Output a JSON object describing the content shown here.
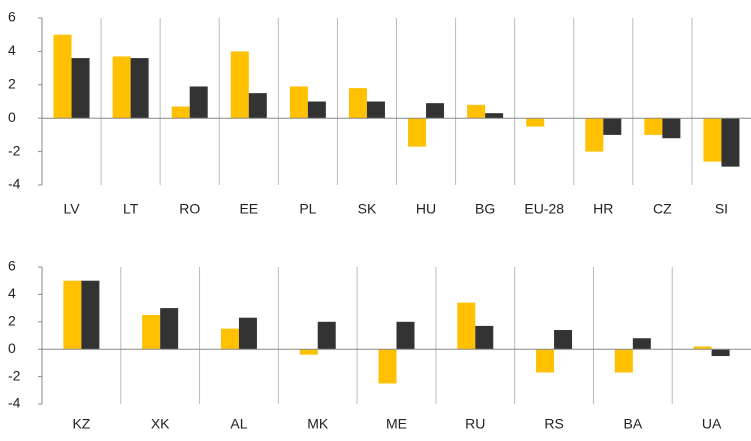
{
  "chart_data": [
    {
      "type": "bar",
      "categories": [
        "LV",
        "LT",
        "RO",
        "EE",
        "PL",
        "SK",
        "HU",
        "BG",
        "EU-28",
        "HR",
        "CZ",
        "SI"
      ],
      "series": [
        {
          "color": "#ffc000",
          "values": [
            5.0,
            3.7,
            0.7,
            4.0,
            1.9,
            1.8,
            -1.7,
            0.8,
            -0.5,
            -2.0,
            -1.0,
            -2.6
          ]
        },
        {
          "color": "#333333",
          "values": [
            3.6,
            3.6,
            1.9,
            1.5,
            1.0,
            1.0,
            0.9,
            0.3,
            null,
            -1.0,
            -1.2,
            -2.9
          ]
        }
      ],
      "ylim": [
        -4,
        6
      ],
      "yticks": [
        -4,
        -2,
        0,
        2,
        4,
        6
      ]
    },
    {
      "type": "bar",
      "categories": [
        "KZ",
        "XK",
        "AL",
        "MK",
        "ME",
        "RU",
        "RS",
        "BA",
        "UA"
      ],
      "series": [
        {
          "color": "#ffc000",
          "values": [
            5.0,
            2.5,
            1.5,
            -0.4,
            -2.5,
            3.4,
            -1.7,
            -1.7,
            0.2
          ]
        },
        {
          "color": "#333333",
          "values": [
            5.0,
            3.0,
            2.3,
            2.0,
            2.0,
            1.7,
            1.4,
            0.8,
            -0.5
          ]
        }
      ],
      "ylim": [
        -4,
        6
      ],
      "yticks": [
        -4,
        -2,
        0,
        2,
        4,
        6
      ]
    }
  ]
}
